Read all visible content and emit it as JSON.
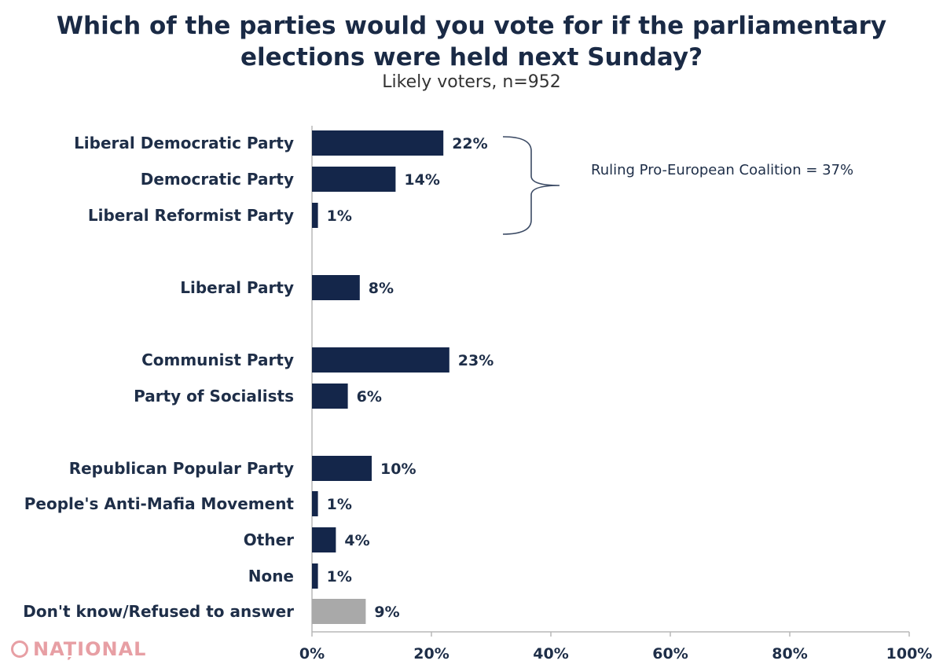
{
  "chart_data": {
    "type": "bar",
    "orientation": "horizontal",
    "title": "Which of the parties would you vote for if the parliamentary elections were held next Sunday?",
    "title_lines": [
      "Which of the parties would you vote for if the parliamentary",
      "elections were held next Sunday?"
    ],
    "subtitle": "Likely voters, n=952",
    "xlim": [
      0,
      100
    ],
    "x_ticks": [
      "0%",
      "20%",
      "40%",
      "60%",
      "80%",
      "100%"
    ],
    "grid": false,
    "categories": [
      "Liberal Democratic Party",
      "Democratic Party",
      "Liberal Reformist Party",
      "Liberal Party",
      "Communist Party",
      "Party of Socialists",
      "Republican Popular Party",
      "People's Anti-Mafia Movement",
      "Other",
      "None",
      "Don't know/Refused to answer"
    ],
    "values": [
      22,
      14,
      1,
      8,
      23,
      6,
      10,
      1,
      4,
      1,
      9
    ],
    "value_labels": [
      "22%",
      "14%",
      "1%",
      "8%",
      "23%",
      "6%",
      "10%",
      "1%",
      "4%",
      "1%",
      "9%"
    ],
    "bar_colors": [
      "#14264a",
      "#14264a",
      "#14264a",
      "#14264a",
      "#14264a",
      "#14264a",
      "#14264a",
      "#14264a",
      "#14264a",
      "#14264a",
      "#a9a9a9"
    ],
    "annotation": {
      "text": "Ruling Pro-European Coalition = 37%",
      "bracket_from": 0,
      "bracket_to": 2
    }
  },
  "watermark": {
    "text": "NAȚIONAL",
    "icon": "circle-logo-icon"
  }
}
